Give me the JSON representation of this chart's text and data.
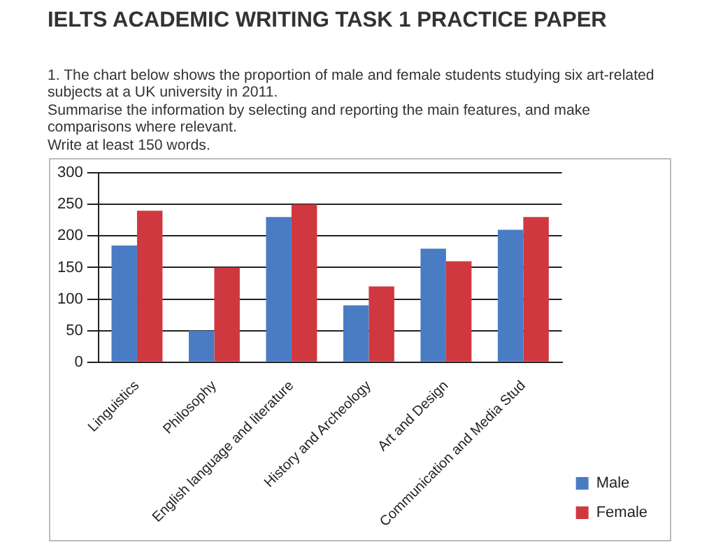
{
  "chart_data": {
    "type": "bar",
    "title": "IELTS ACADEMIC WRITING TASK 1 PRACTICE PAPER",
    "annotations": [
      "1. The chart below shows the proportion of male and female students studying six art-related subjects at a UK university in 2011.",
      "Summarise the information by selecting and reporting the main features, and make comparisons where relevant.",
      "Write at least 150 words."
    ],
    "categories": [
      "Linguistics",
      "Philosophy",
      "English language and literature",
      "History and Archeology",
      "Art and Design",
      "Communication and Media Stud"
    ],
    "series": [
      {
        "name": "Male",
        "color": "#4a7cc4",
        "values": [
          185,
          50,
          230,
          90,
          180,
          210
        ]
      },
      {
        "name": "Female",
        "color": "#d0383f",
        "values": [
          240,
          150,
          250,
          120,
          160,
          230
        ]
      }
    ],
    "ylim": [
      0,
      300
    ],
    "yticks": [
      0,
      50,
      100,
      150,
      200,
      250,
      300
    ],
    "grid": "y",
    "legend": "right"
  }
}
